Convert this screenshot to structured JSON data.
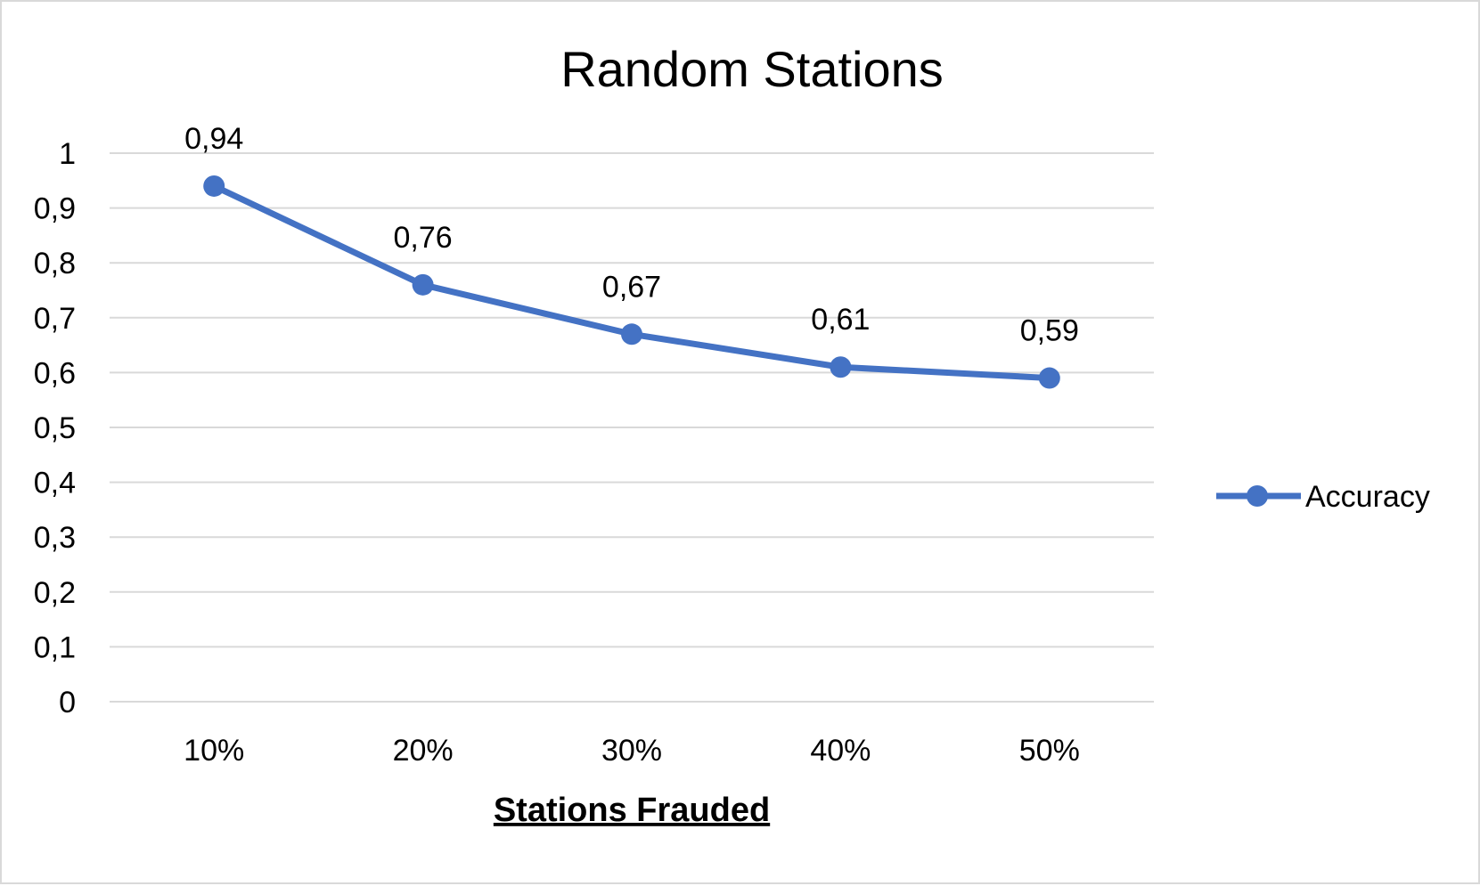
{
  "chart_data": {
    "type": "line",
    "title": "Random Stations",
    "xlabel": "Stations Frauded",
    "ylabel": "",
    "categories": [
      "10%",
      "20%",
      "30%",
      "40%",
      "50%"
    ],
    "series": [
      {
        "name": "Accuracy",
        "values": [
          0.94,
          0.76,
          0.67,
          0.61,
          0.59
        ],
        "data_labels": [
          "0,94",
          "0,76",
          "0,67",
          "0,61",
          "0,59"
        ],
        "color": "#4472c4"
      }
    ],
    "ylim": [
      0,
      1
    ],
    "yticks": [
      0,
      0.1,
      0.2,
      0.3,
      0.4,
      0.5,
      0.6,
      0.7,
      0.8,
      0.9,
      1
    ],
    "ytick_labels": [
      "0",
      "0,1",
      "0,2",
      "0,3",
      "0,4",
      "0,5",
      "0,6",
      "0,7",
      "0,8",
      "0,9",
      "1"
    ],
    "grid": true,
    "legend_position": "right",
    "gridline_color": "#d9d9d9",
    "border_color": "#d9d9d9"
  }
}
